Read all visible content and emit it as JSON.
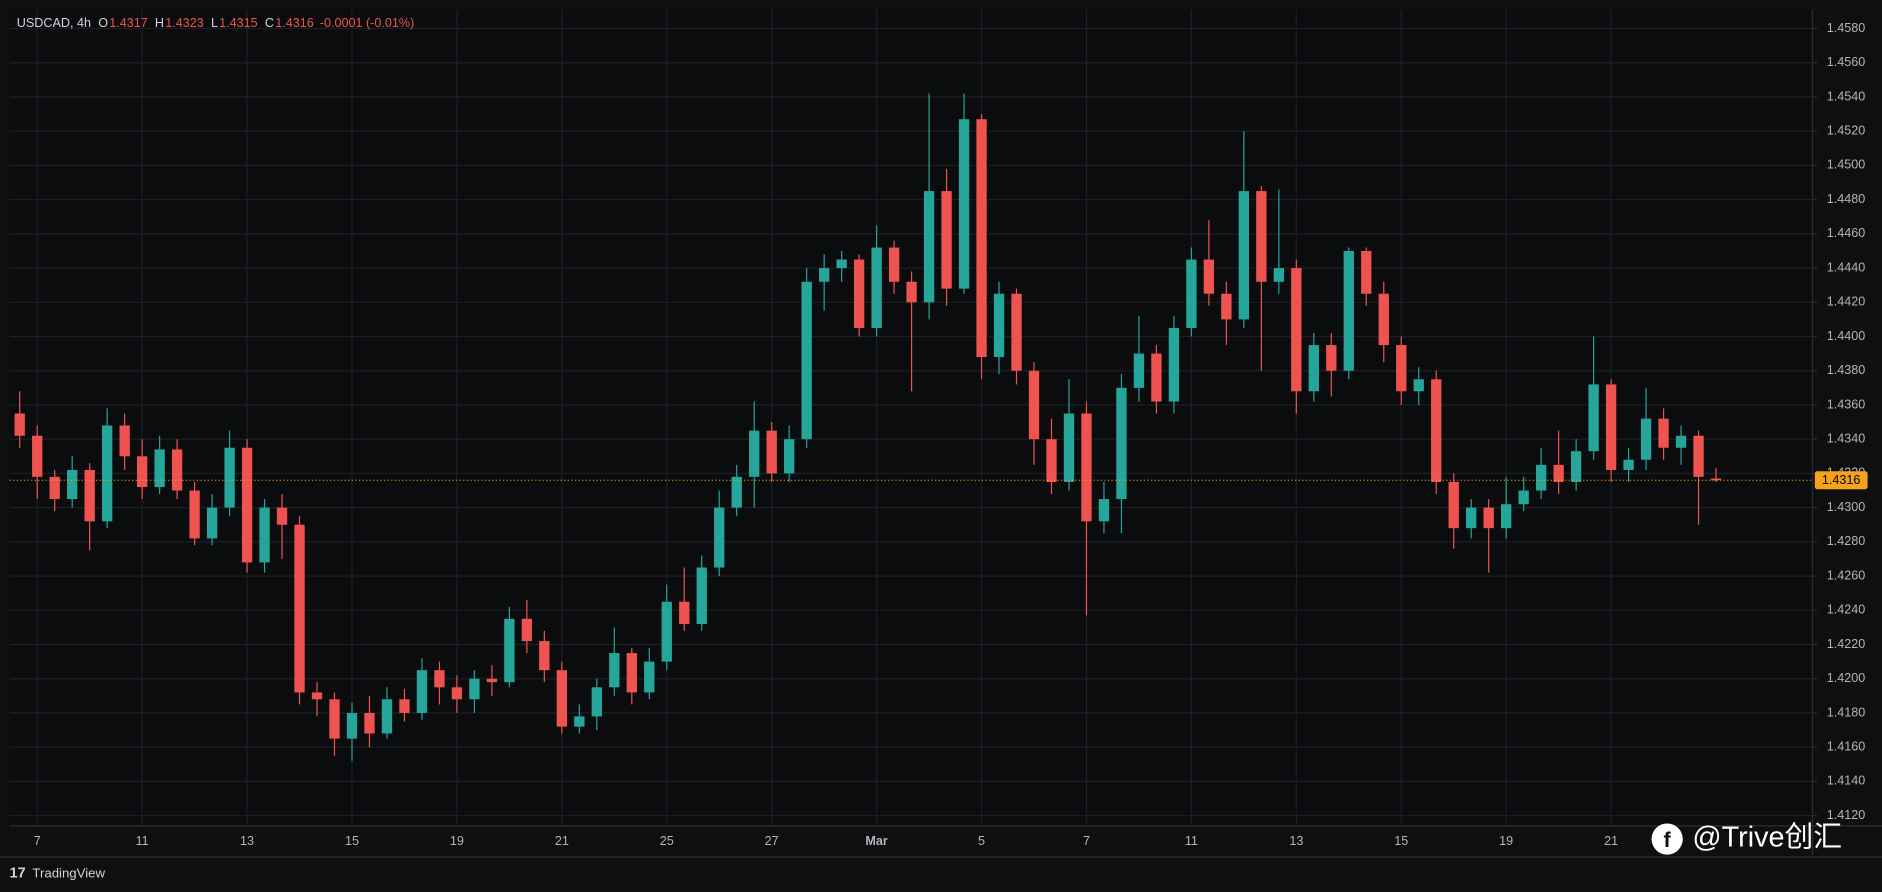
{
  "chart_data": {
    "type": "candlestick",
    "x": [
      null,
      "7",
      null,
      null,
      null,
      null,
      null,
      "11",
      null,
      null,
      null,
      null,
      null,
      "13",
      null,
      null,
      null,
      null,
      null,
      "15",
      null,
      null,
      null,
      null,
      null,
      "19",
      null,
      null,
      null,
      null,
      null,
      "21",
      null,
      null,
      null,
      null,
      null,
      "25",
      null,
      null,
      null,
      null,
      null,
      "27",
      null,
      null,
      null,
      null,
      null,
      "Mar",
      null,
      null,
      null,
      null,
      null,
      "5",
      null,
      null,
      null,
      null,
      null,
      "7",
      null,
      null,
      null,
      null,
      null,
      "11",
      null,
      null,
      null,
      null,
      null,
      "13",
      null,
      null,
      null,
      null,
      null,
      "15",
      null,
      null,
      null,
      null,
      null,
      "19",
      null,
      null,
      null,
      null,
      null,
      "21",
      null,
      null,
      null,
      null,
      null,
      null
    ],
    "open": [
      1.4355,
      1.4342,
      1.4318,
      1.4305,
      1.4322,
      1.4292,
      1.4348,
      1.433,
      1.4312,
      1.4334,
      1.431,
      1.4282,
      1.43,
      1.4335,
      1.4268,
      1.43,
      1.429,
      1.4192,
      1.4188,
      1.4165,
      1.418,
      1.4168,
      1.4188,
      1.418,
      1.4205,
      1.4195,
      1.4188,
      1.42,
      1.4198,
      1.4235,
      1.4222,
      1.4205,
      1.4172,
      1.4178,
      1.4195,
      1.4215,
      1.4192,
      1.421,
      1.4245,
      1.4232,
      1.4265,
      1.43,
      1.4318,
      1.4345,
      1.432,
      1.434,
      1.4432,
      1.444,
      1.4445,
      1.4405,
      1.4452,
      1.4432,
      1.442,
      1.4485,
      1.4428,
      1.4527,
      1.4388,
      1.4425,
      1.438,
      1.434,
      1.4315,
      1.4355,
      1.4292,
      1.4305,
      1.437,
      1.439,
      1.4362,
      1.4405,
      1.4445,
      1.4425,
      1.441,
      1.4485,
      1.4432,
      1.444,
      1.4368,
      1.4395,
      1.438,
      1.445,
      1.4425,
      1.4395,
      1.4368,
      1.4375,
      1.4315,
      1.4288,
      1.43,
      1.4288,
      1.4302,
      1.431,
      1.4325,
      1.4315,
      1.4333,
      1.4372,
      1.4322,
      1.4328,
      1.4352,
      1.4335,
      1.4342,
      1.4317
    ],
    "high": [
      1.4368,
      1.4348,
      1.4322,
      1.433,
      1.4326,
      1.4358,
      1.4355,
      1.434,
      1.4342,
      1.434,
      1.4315,
      1.4308,
      1.4345,
      1.434,
      1.4305,
      1.4308,
      1.4295,
      1.4198,
      1.4192,
      1.4186,
      1.419,
      1.4195,
      1.4194,
      1.4212,
      1.421,
      1.4202,
      1.4205,
      1.4208,
      1.4242,
      1.4246,
      1.4228,
      1.421,
      1.4185,
      1.42,
      1.423,
      1.4218,
      1.4218,
      1.4255,
      1.4265,
      1.4272,
      1.431,
      1.4325,
      1.4362,
      1.435,
      1.4348,
      1.444,
      1.4448,
      1.445,
      1.4448,
      1.4465,
      1.4456,
      1.4438,
      1.4542,
      1.4498,
      1.4542,
      1.453,
      1.4432,
      1.4428,
      1.4385,
      1.4352,
      1.4375,
      1.4362,
      1.4315,
      1.4378,
      1.4412,
      1.4395,
      1.4412,
      1.4452,
      1.4468,
      1.4432,
      1.452,
      1.4488,
      1.4486,
      1.4445,
      1.4402,
      1.4402,
      1.4452,
      1.4452,
      1.4432,
      1.44,
      1.4382,
      1.438,
      1.432,
      1.4305,
      1.4305,
      1.4318,
      1.4318,
      1.4335,
      1.4345,
      1.434,
      1.44,
      1.4375,
      1.4335,
      1.437,
      1.4358,
      1.4348,
      1.4345,
      1.4323
    ],
    "low": [
      1.4335,
      1.4305,
      1.4298,
      1.43,
      1.4275,
      1.4288,
      1.4322,
      1.4305,
      1.4308,
      1.4305,
      1.4278,
      1.4278,
      1.4295,
      1.4262,
      1.4262,
      1.427,
      1.4185,
      1.4178,
      1.4155,
      1.4152,
      1.416,
      1.4165,
      1.4175,
      1.4176,
      1.4185,
      1.418,
      1.418,
      1.419,
      1.4195,
      1.4215,
      1.4198,
      1.4168,
      1.4168,
      1.417,
      1.419,
      1.4185,
      1.4188,
      1.4205,
      1.4228,
      1.4228,
      1.426,
      1.4295,
      1.43,
      1.4315,
      1.4315,
      1.4335,
      1.4415,
      1.4432,
      1.44,
      1.44,
      1.4425,
      1.4368,
      1.441,
      1.4418,
      1.4425,
      1.4375,
      1.4378,
      1.4372,
      1.4325,
      1.4308,
      1.431,
      1.4237,
      1.4285,
      1.4285,
      1.4362,
      1.4355,
      1.4355,
      1.44,
      1.4418,
      1.4395,
      1.4405,
      1.438,
      1.4425,
      1.4355,
      1.4362,
      1.4365,
      1.4375,
      1.4418,
      1.4385,
      1.436,
      1.436,
      1.4308,
      1.4276,
      1.4282,
      1.4262,
      1.4282,
      1.4298,
      1.4305,
      1.4308,
      1.431,
      1.4328,
      1.4315,
      1.4315,
      1.4322,
      1.4328,
      1.4325,
      1.429,
      1.4315
    ],
    "close": [
      1.4342,
      1.4318,
      1.4305,
      1.4322,
      1.4292,
      1.4348,
      1.433,
      1.4312,
      1.4334,
      1.431,
      1.4282,
      1.43,
      1.4335,
      1.4268,
      1.43,
      1.429,
      1.4192,
      1.4188,
      1.4165,
      1.418,
      1.4168,
      1.4188,
      1.418,
      1.4205,
      1.4195,
      1.4188,
      1.42,
      1.4198,
      1.4235,
      1.4222,
      1.4205,
      1.4172,
      1.4178,
      1.4195,
      1.4215,
      1.4192,
      1.421,
      1.4245,
      1.4232,
      1.4265,
      1.43,
      1.4318,
      1.4345,
      1.432,
      1.434,
      1.4432,
      1.444,
      1.4445,
      1.4405,
      1.4452,
      1.4432,
      1.442,
      1.4485,
      1.4428,
      1.4527,
      1.4388,
      1.4425,
      1.438,
      1.434,
      1.4315,
      1.4355,
      1.4292,
      1.4305,
      1.437,
      1.439,
      1.4362,
      1.4405,
      1.4445,
      1.4425,
      1.441,
      1.4485,
      1.4432,
      1.444,
      1.4368,
      1.4395,
      1.438,
      1.445,
      1.4425,
      1.4395,
      1.4368,
      1.4375,
      1.4315,
      1.4288,
      1.43,
      1.4288,
      1.4302,
      1.431,
      1.4325,
      1.4315,
      1.4333,
      1.4372,
      1.4322,
      1.4328,
      1.4352,
      1.4335,
      1.4342,
      1.4318,
      1.4316
    ],
    "colors": {
      "up": "#26a69a",
      "down": "#ef5350"
    },
    "ylim": [
      1.4114,
      1.4591
    ],
    "yticks": [
      {
        "value": 1.412,
        "label": "1.4120"
      },
      {
        "value": 1.414,
        "label": "1.4140"
      },
      {
        "value": 1.416,
        "label": "1.4160"
      },
      {
        "value": 1.418,
        "label": "1.4180"
      },
      {
        "value": 1.42,
        "label": "1.4200"
      },
      {
        "value": 1.422,
        "label": "1.4220"
      },
      {
        "value": 1.424,
        "label": "1.4240"
      },
      {
        "value": 1.426,
        "label": "1.4260"
      },
      {
        "value": 1.428,
        "label": "1.4280"
      },
      {
        "value": 1.43,
        "label": "1.4300"
      },
      {
        "value": 1.432,
        "label": "1.4320"
      },
      {
        "value": 1.434,
        "label": "1.4340"
      },
      {
        "value": 1.436,
        "label": "1.4360"
      },
      {
        "value": 1.438,
        "label": "1.4380"
      },
      {
        "value": 1.44,
        "label": "1.4400"
      },
      {
        "value": 1.442,
        "label": "1.4420"
      },
      {
        "value": 1.444,
        "label": "1.4440"
      },
      {
        "value": 1.446,
        "label": "1.4460"
      },
      {
        "value": 1.448,
        "label": "1.4480"
      },
      {
        "value": 1.45,
        "label": "1.4500"
      },
      {
        "value": 1.452,
        "label": "1.4520"
      },
      {
        "value": 1.454,
        "label": "1.4540"
      },
      {
        "value": 1.456,
        "label": "1.4560"
      },
      {
        "value": 1.458,
        "label": "1.4580"
      }
    ],
    "grid": true,
    "last_price": 1.4316,
    "last_price_color": "#f7a21b"
  },
  "header": {
    "symbol": "USDCAD, 4h",
    "fields": [
      {
        "label": "O",
        "value": 1.4317
      },
      {
        "label": "H",
        "value": 1.4323
      },
      {
        "label": "L",
        "value": 1.4315
      },
      {
        "label": "C",
        "value": 1.4316
      }
    ],
    "change": "-0.0001 (-0.01%)"
  },
  "watermark": "@Trive创汇",
  "footer": "TradingView"
}
